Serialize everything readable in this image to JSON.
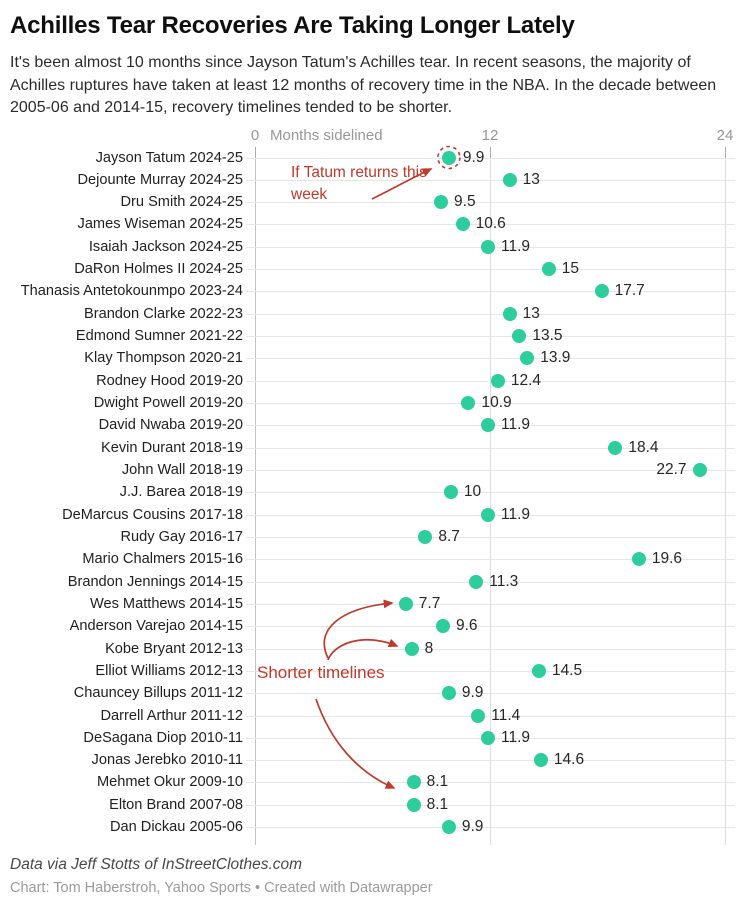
{
  "header": {
    "title": "Achilles Tear Recoveries Are Taking Longer Lately",
    "subtitle": "It's been almost 10 months since Jayson Tatum's Achilles tear. In recent seasons, the majority of Achilles ruptures have taken at least 12 months of recovery time in the NBA. In the decade between 2005-06 and 2014-15, recovery timelines tended to be shorter."
  },
  "axis": {
    "title": "Months sidelined",
    "ticks": [
      "0",
      "12",
      "24"
    ]
  },
  "annotations": {
    "tatum": "If Tatum returns this week",
    "shorter": "Shorter timelines"
  },
  "footer": {
    "source": "Data via Jeff Stotts of InStreetClothes.com",
    "credit": "Chart: Tom Haberstroh, Yahoo Sports • Created with Datawrapper"
  },
  "colors": {
    "dot": "#2ecd9d",
    "annotation_red": "#c0392b",
    "axis_line_zero": "#c4c4c4",
    "axis_line_minor": "#dedede",
    "row_gridline": "#e6e6e6"
  },
  "chart_data": {
    "type": "scatter",
    "title": "Achilles Tear Recoveries Are Taking Longer Lately",
    "xlabel": "Months sidelined",
    "xlim": [
      0,
      24
    ],
    "x_ticks": [
      0,
      12,
      24
    ],
    "grid": "horizontal-per-row and vertical at ticks",
    "legend": "none",
    "players": [
      {
        "label": "Jayson Tatum 2024-25",
        "value": 9.9,
        "display": "9.9",
        "label_side": "right",
        "highlight": true
      },
      {
        "label": "Dejounte Murray 2024-25",
        "value": 13,
        "display": "13",
        "label_side": "right"
      },
      {
        "label": "Dru Smith 2024-25",
        "value": 9.5,
        "display": "9.5",
        "label_side": "right"
      },
      {
        "label": "James Wiseman 2024-25",
        "value": 10.6,
        "display": "10.6",
        "label_side": "right"
      },
      {
        "label": "Isaiah Jackson 2024-25",
        "value": 11.9,
        "display": "11.9",
        "label_side": "right"
      },
      {
        "label": "DaRon Holmes II 2024-25",
        "value": 15,
        "display": "15",
        "label_side": "right"
      },
      {
        "label": "Thanasis Antetokounmpo 2023-24",
        "value": 17.7,
        "display": "17.7",
        "label_side": "right"
      },
      {
        "label": "Brandon Clarke 2022-23",
        "value": 13,
        "display": "13",
        "label_side": "right"
      },
      {
        "label": "Edmond Sumner 2021-22",
        "value": 13.5,
        "display": "13.5",
        "label_side": "right"
      },
      {
        "label": "Klay Thompson 2020-21",
        "value": 13.9,
        "display": "13.9",
        "label_side": "right"
      },
      {
        "label": "Rodney Hood 2019-20",
        "value": 12.4,
        "display": "12.4",
        "label_side": "right"
      },
      {
        "label": "Dwight Powell 2019-20",
        "value": 10.9,
        "display": "10.9",
        "label_side": "right"
      },
      {
        "label": "David Nwaba 2019-20",
        "value": 11.9,
        "display": "11.9",
        "label_side": "right"
      },
      {
        "label": "Kevin Durant 2018-19",
        "value": 18.4,
        "display": "18.4",
        "label_side": "right"
      },
      {
        "label": "John Wall 2018-19",
        "value": 22.7,
        "display": "22.7",
        "label_side": "left"
      },
      {
        "label": "J.J. Barea 2018-19",
        "value": 10,
        "display": "10",
        "label_side": "right"
      },
      {
        "label": "DeMarcus Cousins 2017-18",
        "value": 11.9,
        "display": "11.9",
        "label_side": "right"
      },
      {
        "label": "Rudy Gay 2016-17",
        "value": 8.7,
        "display": "8.7",
        "label_side": "right"
      },
      {
        "label": "Mario Chalmers 2015-16",
        "value": 19.6,
        "display": "19.6",
        "label_side": "right"
      },
      {
        "label": "Brandon Jennings 2014-15",
        "value": 11.3,
        "display": "11.3",
        "label_side": "right"
      },
      {
        "label": "Wes Matthews 2014-15",
        "value": 7.7,
        "display": "7.7",
        "label_side": "right"
      },
      {
        "label": "Anderson Varejao 2014-15",
        "value": 9.6,
        "display": "9.6",
        "label_side": "right"
      },
      {
        "label": "Kobe Bryant 2012-13",
        "value": 8,
        "display": "8",
        "label_side": "right"
      },
      {
        "label": "Elliot Williams 2012-13",
        "value": 14.5,
        "display": "14.5",
        "label_side": "right"
      },
      {
        "label": "Chauncey Billups 2011-12",
        "value": 9.9,
        "display": "9.9",
        "label_side": "right"
      },
      {
        "label": "Darrell Arthur 2011-12",
        "value": 11.4,
        "display": "11.4",
        "label_side": "right"
      },
      {
        "label": "DeSagana Diop 2010-11",
        "value": 11.9,
        "display": "11.9",
        "label_side": "right"
      },
      {
        "label": "Jonas Jerebko 2010-11",
        "value": 14.6,
        "display": "14.6",
        "label_side": "right"
      },
      {
        "label": "Mehmet Okur 2009-10",
        "value": 8.1,
        "display": "8.1",
        "label_side": "right"
      },
      {
        "label": "Elton Brand 2007-08",
        "value": 8.1,
        "display": "8.1",
        "label_side": "right"
      },
      {
        "label": "Dan Dickau 2005-06",
        "value": 9.9,
        "display": "9.9",
        "label_side": "right"
      }
    ]
  }
}
